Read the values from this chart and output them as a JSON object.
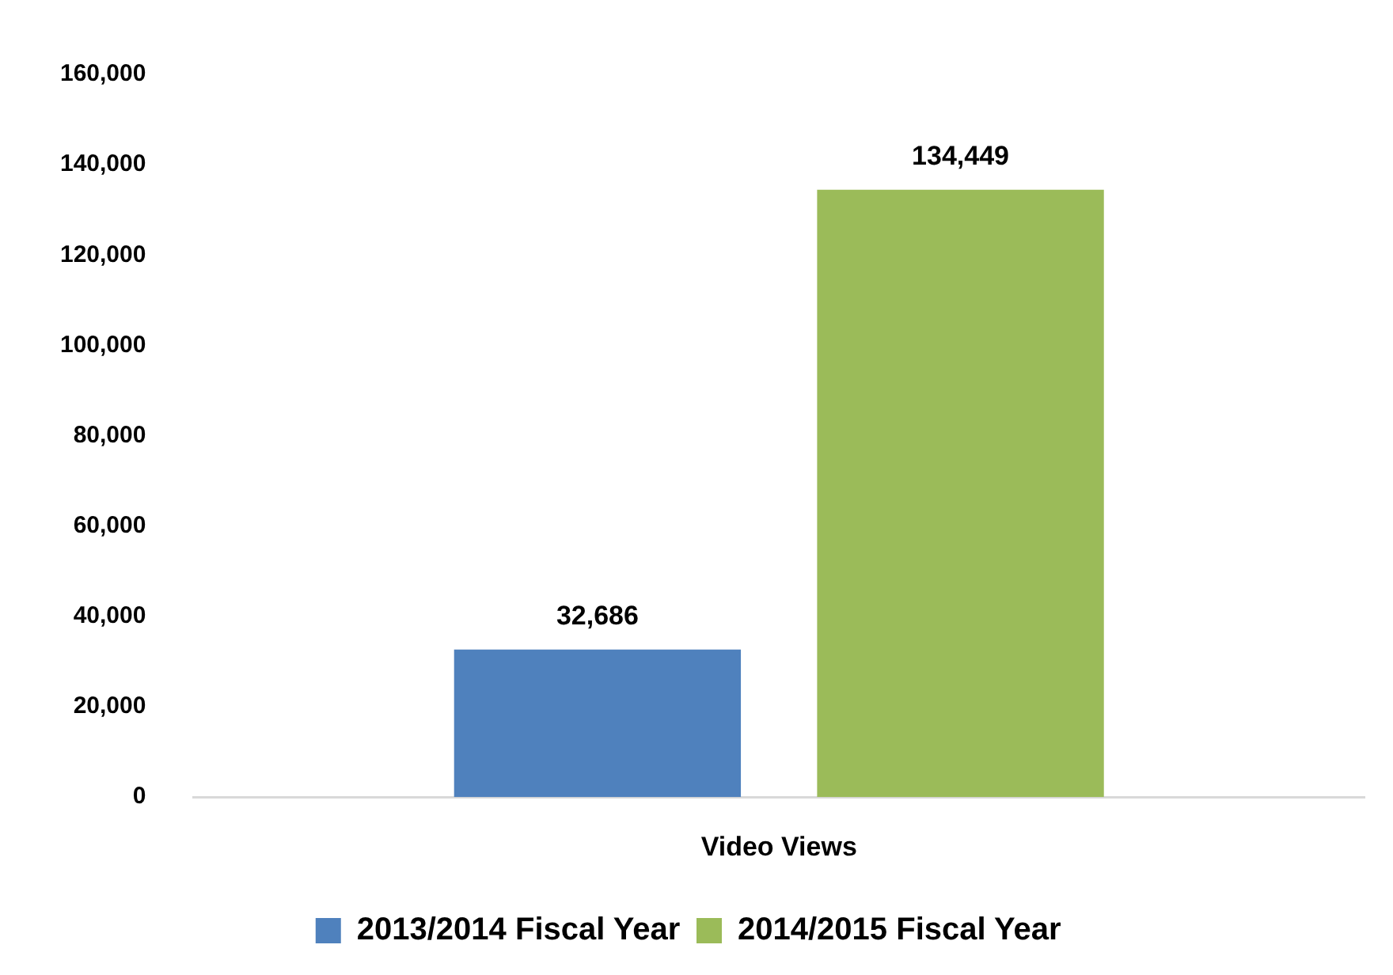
{
  "chart_data": {
    "type": "bar",
    "categories": [
      "Video Views"
    ],
    "series": [
      {
        "name": "2013/2014 Fiscal Year",
        "color": "#4f81bd",
        "values": [
          32686
        ],
        "value_labels": [
          "32,686"
        ]
      },
      {
        "name": "2014/2015 Fiscal Year",
        "color": "#9bbb59",
        "values": [
          134449
        ],
        "value_labels": [
          "134,449"
        ]
      }
    ],
    "ylim": [
      0,
      160000
    ],
    "yticks": [
      0,
      {
        "value": 20000,
        "label": "20,000"
      },
      {
        "value": 40000,
        "label": "40,000"
      },
      {
        "value": 60000,
        "label": "60,000"
      },
      {
        "value": 80000,
        "label": "80,000"
      },
      {
        "value": 100000,
        "label": "100,000"
      },
      {
        "value": 120000,
        "label": "120,000"
      },
      {
        "value": 140000,
        "label": "140,000"
      },
      {
        "value": 160000,
        "label": "160,000"
      }
    ],
    "grid": false,
    "legend": "bottom"
  }
}
